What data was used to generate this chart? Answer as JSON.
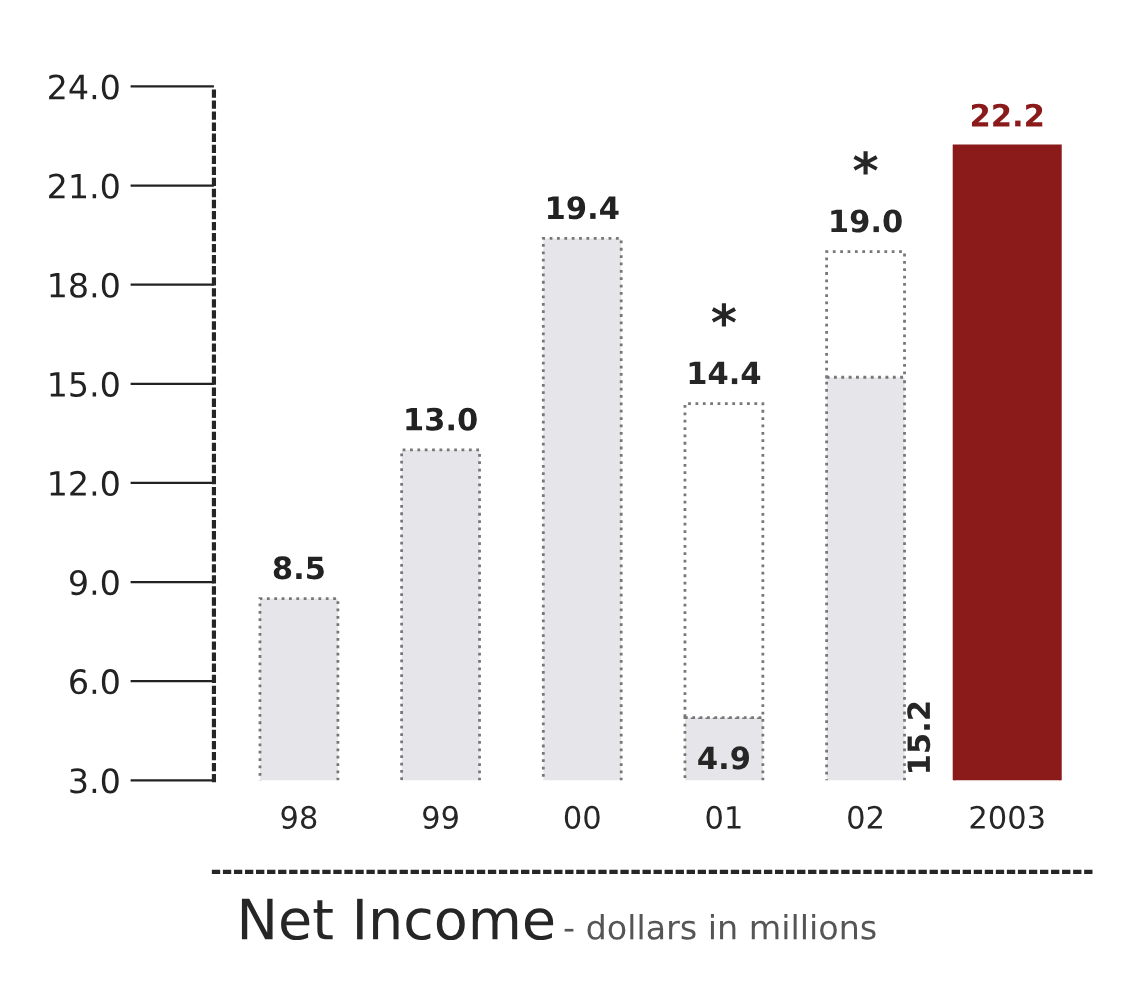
{
  "chart_data": {
    "type": "bar",
    "stacked": true,
    "title": "Net Income",
    "subtitle": "- dollars in millions",
    "categories": [
      "98",
      "99",
      "00",
      "01",
      "02",
      "2003"
    ],
    "series": [
      {
        "color": "#e6e6ea",
        "colors": [
          "#e6e6ea",
          "#e6e6ea",
          "#e6e6ea",
          "#e6e6ea",
          "#e6e6ea",
          "#8b1a1a"
        ],
        "values": [
          8.5,
          13.0,
          19.4,
          4.9,
          15.2,
          22.2
        ],
        "value_labels": [
          "8.5",
          "13.0",
          "19.4",
          "4.9",
          "15.2",
          "22.2"
        ]
      },
      {
        "color": "#ffffff",
        "values": [
          null,
          null,
          null,
          9.5,
          3.8,
          null
        ]
      }
    ],
    "totals": [
      null,
      null,
      null,
      "14.4",
      "19.0",
      null
    ],
    "annotations": [
      "*",
      "*"
    ],
    "ylim": [
      3.0,
      24.0
    ],
    "yticks": [
      {
        "value": 3,
        "label": "3.0"
      },
      {
        "value": 6,
        "label": "6.0"
      },
      {
        "value": 9,
        "label": "9.0"
      },
      {
        "value": 12,
        "label": "12.0"
      },
      {
        "value": 15,
        "label": "15.0"
      },
      {
        "value": 18,
        "label": "18.0"
      },
      {
        "value": 21,
        "label": "21.0"
      },
      {
        "value": 24,
        "label": "24.0"
      }
    ],
    "grid": false,
    "legend": false
  }
}
